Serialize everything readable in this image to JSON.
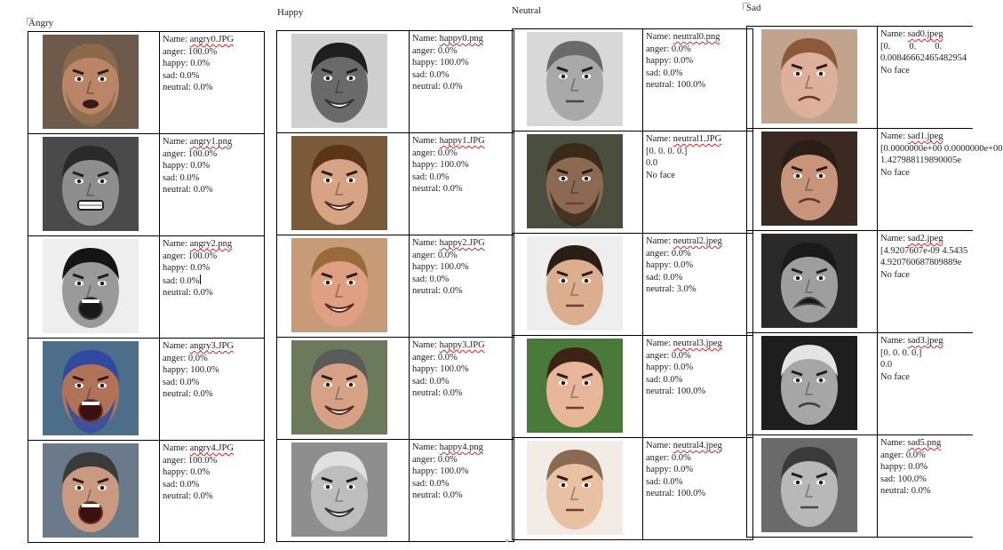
{
  "panels": [
    {
      "id": "angry",
      "title": "Angry",
      "rows": [
        {
          "file": "angry0.JPG",
          "skin": "#b98566",
          "bg": "#6e5a4a",
          "hair": "#8a6a4a",
          "mouth": "open-small",
          "beard": true,
          "lines": [
            "anger: 100.0%",
            "happy: 0.0%",
            "sad: 0.0%",
            "neutral: 0.0%"
          ]
        },
        {
          "file": "angry1.png",
          "skin": "#8e8e8e",
          "bg": "#4a4a4a",
          "hair": "#2a2a2a",
          "mouth": "grimace",
          "beard": false,
          "gray": true,
          "lines": [
            "anger: 100.0%",
            "happy: 0.0%",
            "sad: 0.0%",
            "neutral: 0.0%"
          ]
        },
        {
          "file": "angry2.png",
          "skin": "#9a9a9a",
          "bg": "#eeeeee",
          "hair": "#151515",
          "mouth": "open-big",
          "beard": false,
          "gray": true,
          "cursor": true,
          "lines": [
            "anger: 100.0%",
            "happy: 0.0%",
            "sad: 0.0%",
            "neutral: 0.0%"
          ]
        },
        {
          "file": "angry3.JPG",
          "skin": "#b0735a",
          "bg": "#4d6e8a",
          "hair": "#2f4aa0",
          "mouth": "open-big",
          "beard": true,
          "lines": [
            "anger: 0.0%",
            "happy: 100.0%",
            "sad: 0.0%",
            "neutral: 0.0%"
          ]
        },
        {
          "file": "angry4.JPG",
          "skin": "#c99a80",
          "bg": "#6a7a8a",
          "hair": "#3a3a3a",
          "mouth": "open-big",
          "beard": false,
          "lines": [
            "anger: 100.0%",
            "happy: 0.0%",
            "sad: 0.0%",
            "neutral: 0.0%"
          ]
        }
      ]
    },
    {
      "id": "happy",
      "title": "Happy",
      "rows": [
        {
          "file": "happy0.png",
          "skin": "#6a6a6a",
          "bg": "#cfcfcf",
          "hair": "#1e1e1e",
          "mouth": "smile",
          "beard": false,
          "gray": true,
          "lines": [
            "anger: 0.0%",
            "happy: 100.0%",
            "sad: 0.0%",
            "neutral: 0.0%"
          ]
        },
        {
          "file": "happy1.JPG",
          "skin": "#d6a485",
          "bg": "#7a5a3a",
          "hair": "#5a3518",
          "mouth": "smile",
          "beard": false,
          "lines": [
            "anger: 0.0%",
            "happy: 100.0%",
            "sad: 0.0%",
            "neutral: 0.0%"
          ]
        },
        {
          "file": "happy2.JPG",
          "skin": "#dea080",
          "bg": "#c79a78",
          "hair": "#9a6a3a",
          "mouth": "smile",
          "beard": false,
          "lines": [
            "anger: 0.0%",
            "happy: 100.0%",
            "sad: 0.0%",
            "neutral: 0.0%"
          ]
        },
        {
          "file": "happy3.JPG",
          "skin": "#d7a185",
          "bg": "#6a7a5a",
          "hair": "#5a5a5a",
          "mouth": "smile",
          "beard": false,
          "lines": [
            "anger: 0.0%",
            "happy: 100.0%",
            "sad: 0.0%",
            "neutral: 0.0%"
          ]
        },
        {
          "file": "happy4.png",
          "skin": "#bdbdbd",
          "bg": "#8e8e8e",
          "hair": "#e0e0e0",
          "mouth": "smile",
          "beard": false,
          "gray": true,
          "lines": [
            "anger: 0.0%",
            "happy: 100.0%",
            "sad: 0.0%",
            "neutral: 0.0%"
          ]
        }
      ]
    },
    {
      "id": "neutral",
      "title": "Neutral",
      "rows": [
        {
          "file": "neutral0.png",
          "skin": "#a9a9a9",
          "bg": "#d8d8d8",
          "hair": "#6a6a6a",
          "mouth": "flat",
          "beard": false,
          "gray": true,
          "lines": [
            "anger: 0.0%",
            "happy: 0.0%",
            "sad: 0.0%",
            "neutral: 100.0%"
          ]
        },
        {
          "file": "neutral1.JPG",
          "skin": "#8c6a52",
          "bg": "#4a4e3e",
          "hair": "#3a2a1a",
          "mouth": "flat",
          "beard": true,
          "lines": [
            "[0. 0. 0. 0.]",
            "0.0",
            "No face"
          ]
        },
        {
          "file": "neutral2.jpeg",
          "skin": "#dcae90",
          "bg": "#eeeeee",
          "hair": "#2a1e14",
          "mouth": "flat",
          "beard": false,
          "lines": [
            "anger: 0.0%",
            "happy: 0.0%",
            "sad: 0.0%",
            "neutral: 3.0%"
          ]
        },
        {
          "file": "neutral3.jpeg",
          "skin": "#e6b59a",
          "bg": "#4a7a3a",
          "hair": "#3a2416",
          "mouth": "flat",
          "beard": false,
          "lines": [
            "anger: 0.0%",
            "happy: 0.0%",
            "sad: 0.0%",
            "neutral: 100.0%"
          ]
        },
        {
          "file": "neutral4.jpeg",
          "skin": "#e8c0a2",
          "bg": "#f3ece6",
          "hair": "#8a6a50",
          "mouth": "flat",
          "beard": false,
          "lines": [
            "anger: 0.0%",
            "happy: 0.0%",
            "sad: 0.0%",
            "neutral: 100.0%"
          ]
        }
      ]
    },
    {
      "id": "sad",
      "title": "Sad",
      "rows": [
        {
          "file": "sad0.jpeg",
          "skin": "#dcb09a",
          "bg": "#c2a48e",
          "hair": "#8a5a3a",
          "mouth": "frown",
          "beard": false,
          "lines": [
            "[0.        0.        0.",
            "0.00846662465482954",
            "No face"
          ]
        },
        {
          "file": "sad1.jpeg",
          "skin": "#c9957a",
          "bg": "#3a2a22",
          "hair": "#2a1e16",
          "mouth": "frown",
          "beard": false,
          "lines": [
            "[0.0000000e+00 0.0000000e+00",
            "1.427988119890005e",
            "No face"
          ]
        },
        {
          "file": "sad2.jpeg",
          "skin": "#9e9e9e",
          "bg": "#2a2a2a",
          "hair": "#1a1a1a",
          "mouth": "cry",
          "beard": false,
          "gray": true,
          "lines": [
            "[4.9207607e-09 4.5435",
            "4.920760687809889e",
            "No face"
          ]
        },
        {
          "file": "sad3.jpeg",
          "skin": "#a6a6a6",
          "bg": "#1e1e1e",
          "hair": "#e4e4e4",
          "mouth": "frown",
          "beard": false,
          "gray": true,
          "lines": [
            "[0. 0. 0. 0.]",
            "0.0",
            "No face"
          ]
        },
        {
          "file": "sad5.png",
          "skin": "#b8b8b8",
          "bg": "#6a6a6a",
          "hair": "#3a3a3a",
          "mouth": "flat",
          "beard": false,
          "gray": true,
          "lines": [
            "anger: 0.0%",
            "happy: 0.0%",
            "sad: 100.0%",
            "neutral: 0.0%"
          ]
        }
      ]
    }
  ],
  "labels": {
    "name_prefix": "Name: "
  }
}
